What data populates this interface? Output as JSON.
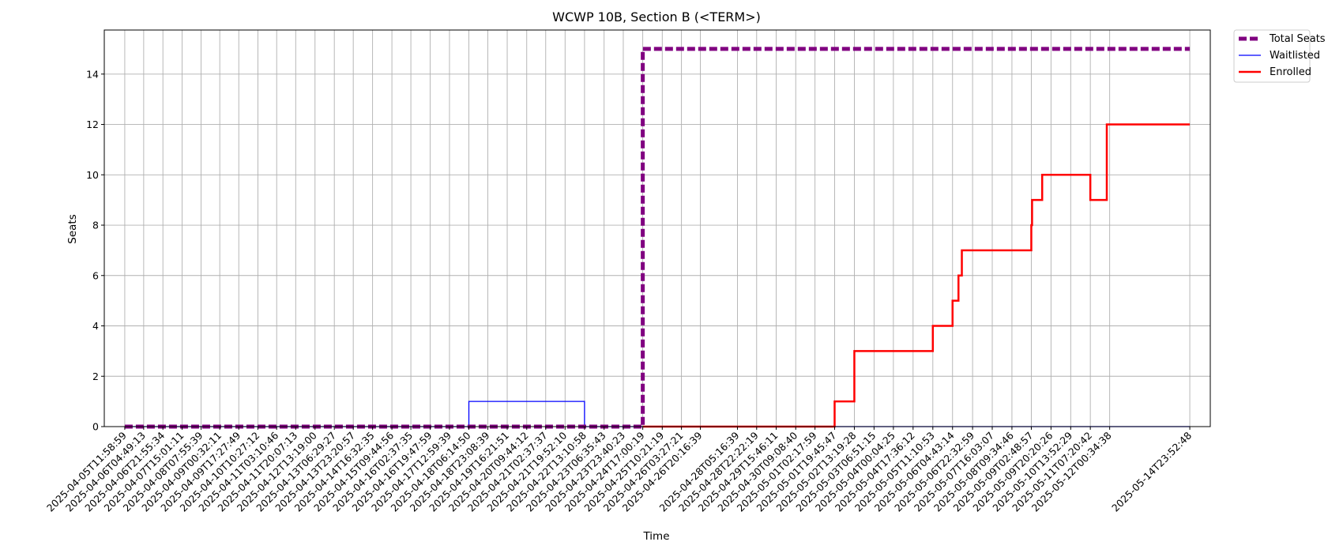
{
  "chart_data": {
    "type": "line",
    "title": "WCWP 10B, Section B (<TERM>)",
    "xlabel": "Time",
    "ylabel": "Seats",
    "ylim": [
      0,
      15.75
    ],
    "yticks": [
      0,
      2,
      4,
      6,
      8,
      10,
      12,
      14
    ],
    "grid": true,
    "legend_placement": "outside-top-right",
    "x_ticks": [
      "2025-04-05T11:58:59",
      "2025-04-06T04:49:13",
      "2025-04-06T21:55:34",
      "2025-04-07T15:01:11",
      "2025-04-08T07:55:39",
      "2025-04-09T00:32:11",
      "2025-04-09T17:27:49",
      "2025-04-10T10:27:12",
      "2025-04-11T03:10:46",
      "2025-04-11T20:07:13",
      "2025-04-12T13:19:00",
      "2025-04-13T06:29:27",
      "2025-04-13T23:20:57",
      "2025-04-14T16:32:35",
      "2025-04-15T09:44:56",
      "2025-04-16T02:37:35",
      "2025-04-16T19:47:59",
      "2025-04-17T12:59:39",
      "2025-04-18T06:14:50",
      "2025-04-18T23:08:39",
      "2025-04-19T16:21:51",
      "2025-04-20T09:44:12",
      "2025-04-21T02:37:37",
      "2025-04-21T19:52:10",
      "2025-04-22T13:10:58",
      "2025-04-23T06:35:43",
      "2025-04-23T23:40:23",
      "2025-04-24T17:00:19",
      "2025-04-25T10:21:19",
      "2025-04-26T03:27:21",
      "2025-04-26T20:16:39",
      "2025-04-28T05:16:39",
      "2025-04-28T22:22:19",
      "2025-04-29T15:46:11",
      "2025-04-30T09:08:40",
      "2025-05-01T02:17:59",
      "2025-05-01T19:45:47",
      "2025-05-02T13:19:28",
      "2025-05-03T06:51:15",
      "2025-05-04T00:04:25",
      "2025-05-04T17:36:12",
      "2025-05-05T11:10:53",
      "2025-05-06T04:43:14",
      "2025-05-06T22:32:59",
      "2025-05-07T16:03:07",
      "2025-05-08T09:34:46",
      "2025-05-09T02:48:57",
      "2025-05-09T20:20:26",
      "2025-05-10T13:52:29",
      "2025-05-11T07:20:42",
      "2025-05-12T00:34:38",
      "2025-05-14T23:52:48"
    ],
    "series": [
      {
        "name": "Total Seats",
        "color": "#800080",
        "style": "dashed",
        "points": [
          [
            "2025-04-05T11:58:59",
            0
          ],
          [
            "2025-04-24T17:00:19",
            0
          ],
          [
            "2025-04-24T17:00:19",
            15
          ],
          [
            "2025-05-14T23:52:48",
            15
          ]
        ]
      },
      {
        "name": "Waitlisted",
        "color": "#0000ff",
        "style": "solid",
        "points": [
          [
            "2025-04-05T11:58:59",
            0
          ],
          [
            "2025-04-18T06:14:50",
            0
          ],
          [
            "2025-04-18T06:14:50",
            1
          ],
          [
            "2025-04-22T13:10:58",
            1
          ],
          [
            "2025-04-22T13:10:58",
            0
          ],
          [
            "2025-05-14T23:52:48",
            0
          ]
        ]
      },
      {
        "name": "Enrolled",
        "color": "#ff0000",
        "style": "solid",
        "points": [
          [
            "2025-04-24T17:00:19",
            0
          ],
          [
            "2025-05-01T19:45:47",
            0
          ],
          [
            "2025-05-01T19:45:47",
            1
          ],
          [
            "2025-05-02T13:19:28",
            1
          ],
          [
            "2025-05-02T13:19:28",
            3
          ],
          [
            "2025-05-05T11:10:53",
            3
          ],
          [
            "2025-05-05T11:10:53",
            4
          ],
          [
            "2025-05-06T04:43:14",
            4
          ],
          [
            "2025-05-06T04:43:14",
            5
          ],
          [
            "2025-05-06T10:00:00",
            5
          ],
          [
            "2025-05-06T10:00:00",
            6
          ],
          [
            "2025-05-06T13:00:00",
            6
          ],
          [
            "2025-05-06T13:00:00",
            7
          ],
          [
            "2025-05-09T02:48:57",
            7
          ],
          [
            "2025-05-09T02:48:57",
            8
          ],
          [
            "2025-05-09T03:30:00",
            8
          ],
          [
            "2025-05-09T03:30:00",
            9
          ],
          [
            "2025-05-09T12:30:00",
            9
          ],
          [
            "2025-05-09T12:30:00",
            10
          ],
          [
            "2025-05-11T07:20:42",
            10
          ],
          [
            "2025-05-11T07:20:42",
            9
          ],
          [
            "2025-05-11T22:00:00",
            9
          ],
          [
            "2025-05-11T22:00:00",
            12
          ],
          [
            "2025-05-14T23:52:48",
            12
          ]
        ]
      }
    ]
  }
}
